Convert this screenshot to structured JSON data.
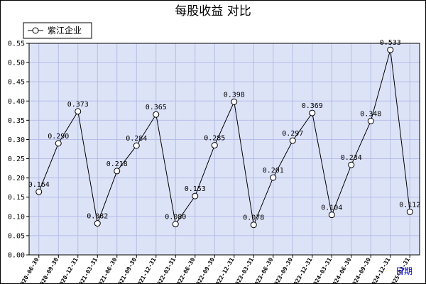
{
  "chart_data": {
    "type": "line",
    "title": "每股收益  对比",
    "xlabel": "日期",
    "ylabel": "",
    "ylim": [
      0,
      0.55
    ],
    "yticks": [
      "0.00",
      "0.05",
      "0.10",
      "0.15",
      "0.20",
      "0.25",
      "0.30",
      "0.35",
      "0.40",
      "0.45",
      "0.50",
      "0.55"
    ],
    "grid": true,
    "legend_position": "top-left",
    "colors": {
      "plot_bg": "#dde3f7",
      "grid": "#b4bde6",
      "line": "#000000",
      "frame": "#000000"
    },
    "x": [
      "2020-06-30",
      "2020-09-30",
      "2020-12-31",
      "2021-03-31",
      "2021-06-30",
      "2021-09-30",
      "2021-12-31",
      "2022-03-31",
      "2022-06-30",
      "2022-09-30",
      "2022-12-31",
      "2023-03-31",
      "2023-06-30",
      "2023-09-30",
      "2023-12-31",
      "2024-03-31",
      "2024-06-30",
      "2024-09-30",
      "2024-12-31",
      "2025-03-31"
    ],
    "x_tick_labels": [
      "2020-06-30",
      "2020-09-30",
      "2020-12-31",
      "2021-03-31",
      "2021-06-30",
      "2021-09-30",
      "2021-12-31",
      "2022-03-31",
      "2022-06-30",
      "2022-09-30",
      "2022-12-31",
      "2023-03-31",
      "2023-06-30",
      "2023-09-30",
      "2023-12-31",
      "2024-03-31",
      "2024-06-30",
      "2024-09-30",
      "2024-12-31",
      "2025-03-31"
    ],
    "series": [
      {
        "name": "紫江企业",
        "values": [
          0.164,
          0.29,
          0.373,
          0.082,
          0.218,
          0.284,
          0.365,
          0.08,
          0.153,
          0.285,
          0.398,
          0.078,
          0.201,
          0.297,
          0.369,
          0.104,
          0.234,
          0.348,
          0.533,
          0.112
        ],
        "labels": [
          "0.164",
          "0.290",
          "0.373",
          "0.082",
          "0.218",
          "0.284",
          "0.365",
          "0.080",
          "0.153",
          "0.285",
          "0.398",
          "0.078",
          "0.201",
          "0.297",
          "0.369",
          "0.104",
          "0.234",
          "0.348",
          "0.533",
          "0.112"
        ]
      }
    ]
  }
}
